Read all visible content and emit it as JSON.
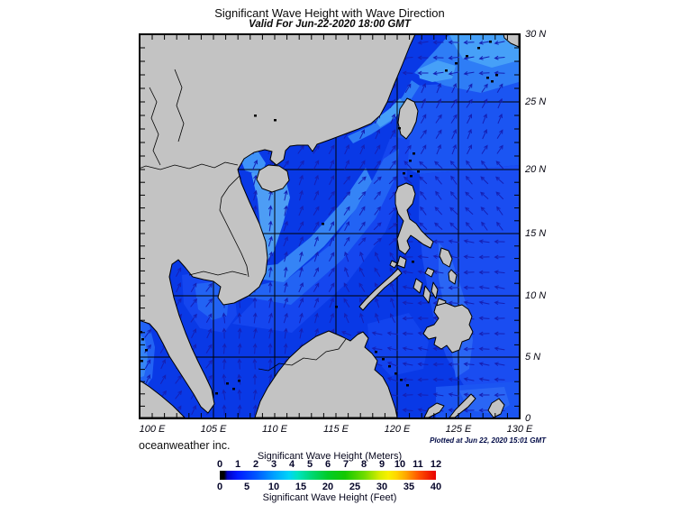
{
  "header": {
    "title": "Significant Wave Height with Wave Direction",
    "subtitle": "Valid For Jun-22-2020 18:00 GMT"
  },
  "map": {
    "lat_labels": [
      "30 N",
      "25 N",
      "20 N",
      "15 N",
      "10 N",
      "5 N",
      "0"
    ],
    "lon_labels": [
      "100 E",
      "105 E",
      "110 E",
      "115 E",
      "120 E",
      "125 E",
      "130 E"
    ]
  },
  "footer": {
    "credit": "oceanweather inc.",
    "plotted_at": "Plotted at Jun 22, 2020 15:01 GMT"
  },
  "legend": {
    "meters_title": "Significant Wave Height (Meters)",
    "meters_ticks": [
      "0",
      "1",
      "2",
      "3",
      "4",
      "5",
      "6",
      "7",
      "8",
      "9",
      "10",
      "11",
      "12"
    ],
    "feet_title": "Significant Wave Height (Feet)",
    "feet_ticks": [
      "0",
      "5",
      "10",
      "15",
      "20",
      "25",
      "30",
      "35",
      "40"
    ],
    "colorbar_stops": [
      [
        "0%",
        "#000000"
      ],
      [
        "2%",
        "#000000"
      ],
      [
        "3.5%",
        "#0000c0"
      ],
      [
        "8%",
        "#0018ff"
      ],
      [
        "17%",
        "#0058ff"
      ],
      [
        "25%",
        "#00a0ff"
      ],
      [
        "32%",
        "#00d4f8"
      ],
      [
        "36%",
        "#00e4c0"
      ],
      [
        "42%",
        "#00d878"
      ],
      [
        "50%",
        "#00cc28"
      ],
      [
        "58%",
        "#14c800"
      ],
      [
        "67%",
        "#70dc00"
      ],
      [
        "74%",
        "#d8ec00"
      ],
      [
        "78%",
        "#f8f000"
      ],
      [
        "81.5%",
        "#ffd800"
      ],
      [
        "86%",
        "#ffa800"
      ],
      [
        "92%",
        "#ff5400"
      ],
      [
        "100%",
        "#e80000"
      ]
    ]
  },
  "style": {
    "ocean_base": "#0939e6",
    "land_gray": "#c3c3c3",
    "arrow_color": "#1520b4",
    "grid_color": "#000000"
  }
}
